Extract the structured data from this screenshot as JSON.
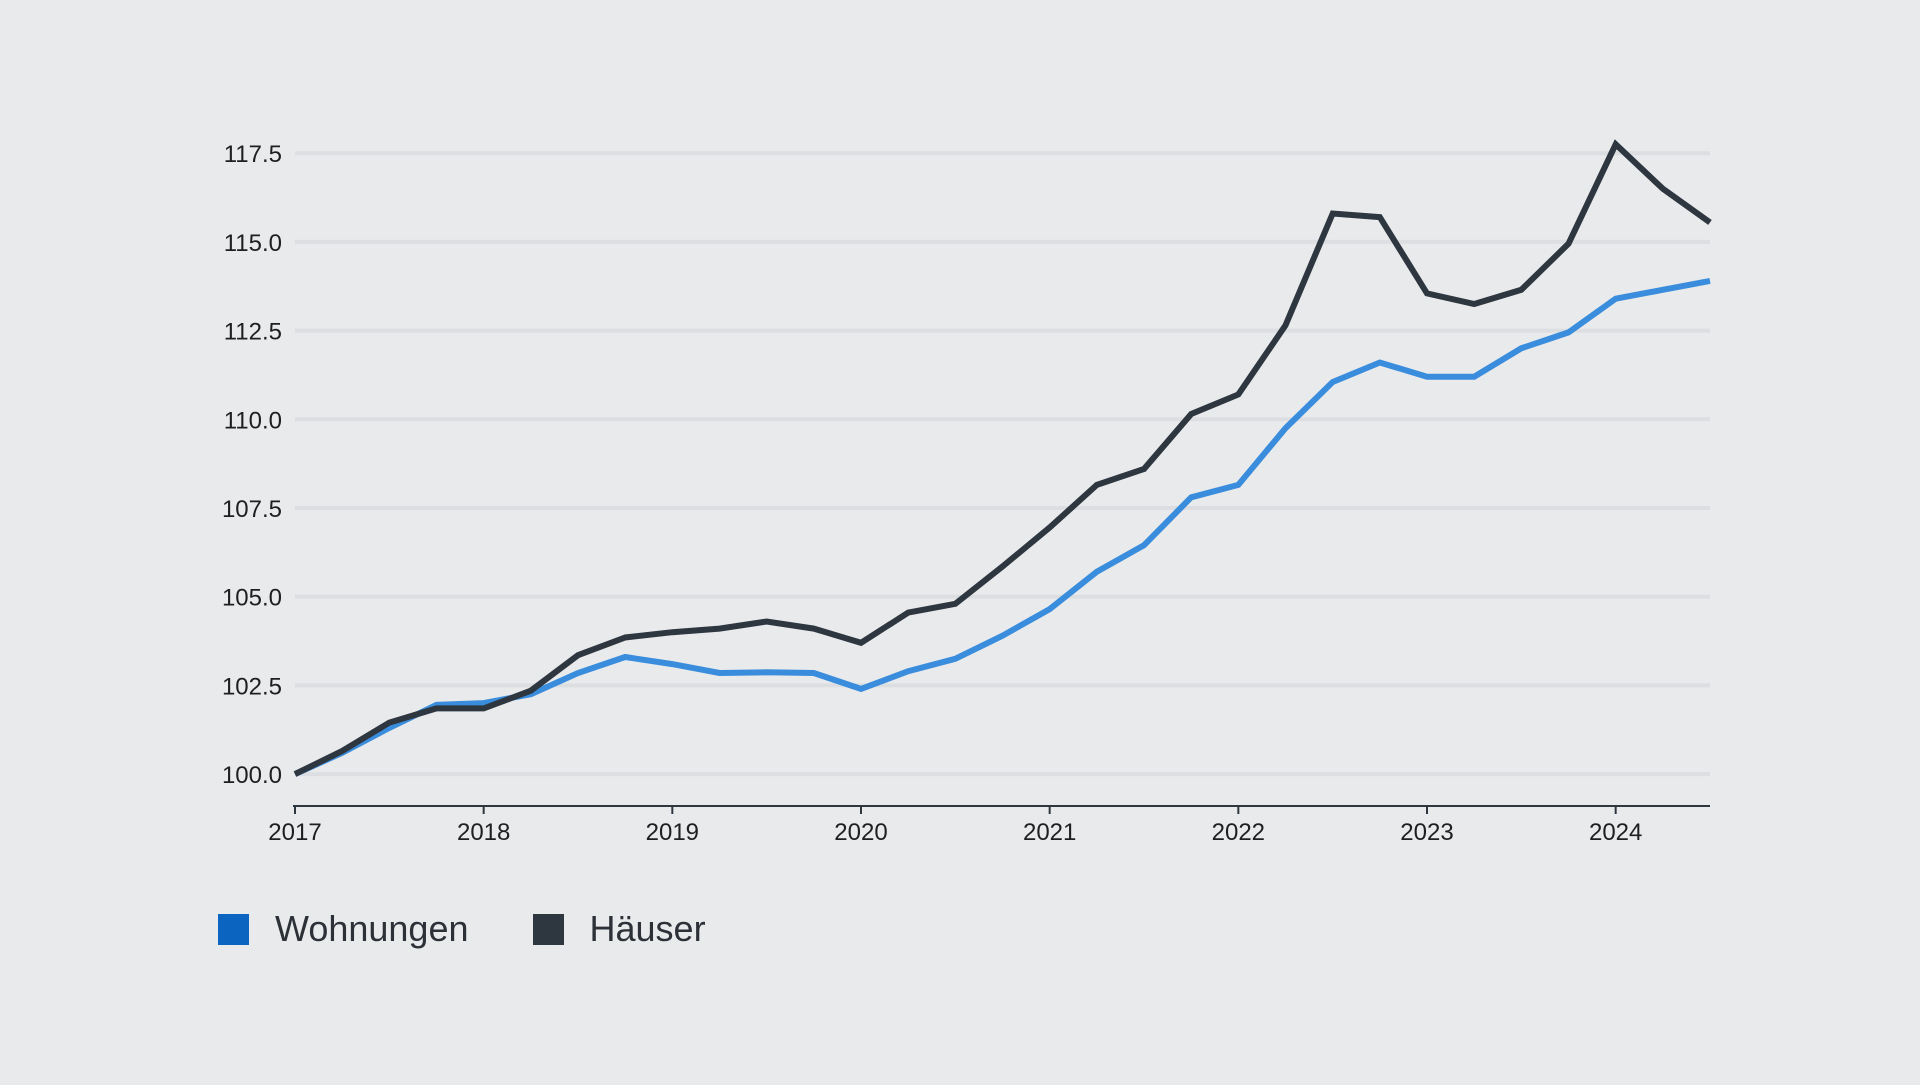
{
  "chart_data": {
    "type": "line",
    "title": "",
    "xlabel": "",
    "ylabel": "",
    "x_ticks": [
      "2017",
      "2018",
      "2019",
      "2020",
      "2021",
      "2022",
      "2023",
      "2024"
    ],
    "y_ticks": [
      "100.0",
      "102.5",
      "105.0",
      "107.5",
      "110.0",
      "112.5",
      "115.0",
      "117.5"
    ],
    "xlim": [
      2017.0,
      2024.5
    ],
    "ylim": [
      99.1,
      119.0
    ],
    "grid": true,
    "legend_position": "bottom-left",
    "series": [
      {
        "name": "Wohnungen",
        "color": "#3a8ddd",
        "legend_color": "#0b64c0",
        "x": [
          2017.0,
          2017.25,
          2017.5,
          2017.75,
          2018.0,
          2018.25,
          2018.5,
          2018.75,
          2019.0,
          2019.25,
          2019.5,
          2019.75,
          2020.0,
          2020.25,
          2020.5,
          2020.75,
          2021.0,
          2021.25,
          2021.5,
          2021.75,
          2022.0,
          2022.25,
          2022.5,
          2022.75,
          2023.0,
          2023.25,
          2023.5,
          2023.75,
          2024.0,
          2024.25,
          2024.5
        ],
        "values": [
          100.0,
          100.6,
          101.3,
          101.95,
          102.0,
          102.25,
          102.85,
          103.3,
          103.1,
          102.85,
          102.87,
          102.85,
          102.4,
          102.9,
          103.25,
          103.9,
          104.65,
          105.7,
          106.45,
          107.8,
          108.15,
          109.75,
          111.05,
          111.6,
          111.2,
          111.2,
          112.0,
          112.45,
          113.4,
          113.65,
          113.9
        ]
      },
      {
        "name": "Häuser",
        "color": "#2e3640",
        "legend_color": "#2e3640",
        "x": [
          2017.0,
          2017.25,
          2017.5,
          2017.75,
          2018.0,
          2018.25,
          2018.5,
          2018.75,
          2019.0,
          2019.25,
          2019.5,
          2019.75,
          2020.0,
          2020.25,
          2020.5,
          2020.75,
          2021.0,
          2021.25,
          2021.5,
          2021.75,
          2022.0,
          2022.25,
          2022.5,
          2022.75,
          2023.0,
          2023.25,
          2023.5,
          2023.75,
          2024.0,
          2024.25,
          2024.5
        ],
        "values": [
          100.0,
          100.65,
          101.45,
          101.85,
          101.85,
          102.35,
          103.35,
          103.85,
          104.0,
          104.1,
          104.3,
          104.1,
          103.7,
          104.55,
          104.8,
          105.85,
          106.95,
          108.15,
          108.6,
          110.15,
          110.7,
          112.65,
          115.8,
          115.7,
          113.55,
          113.25,
          113.65,
          114.95,
          117.75,
          116.5,
          115.55
        ]
      }
    ]
  }
}
